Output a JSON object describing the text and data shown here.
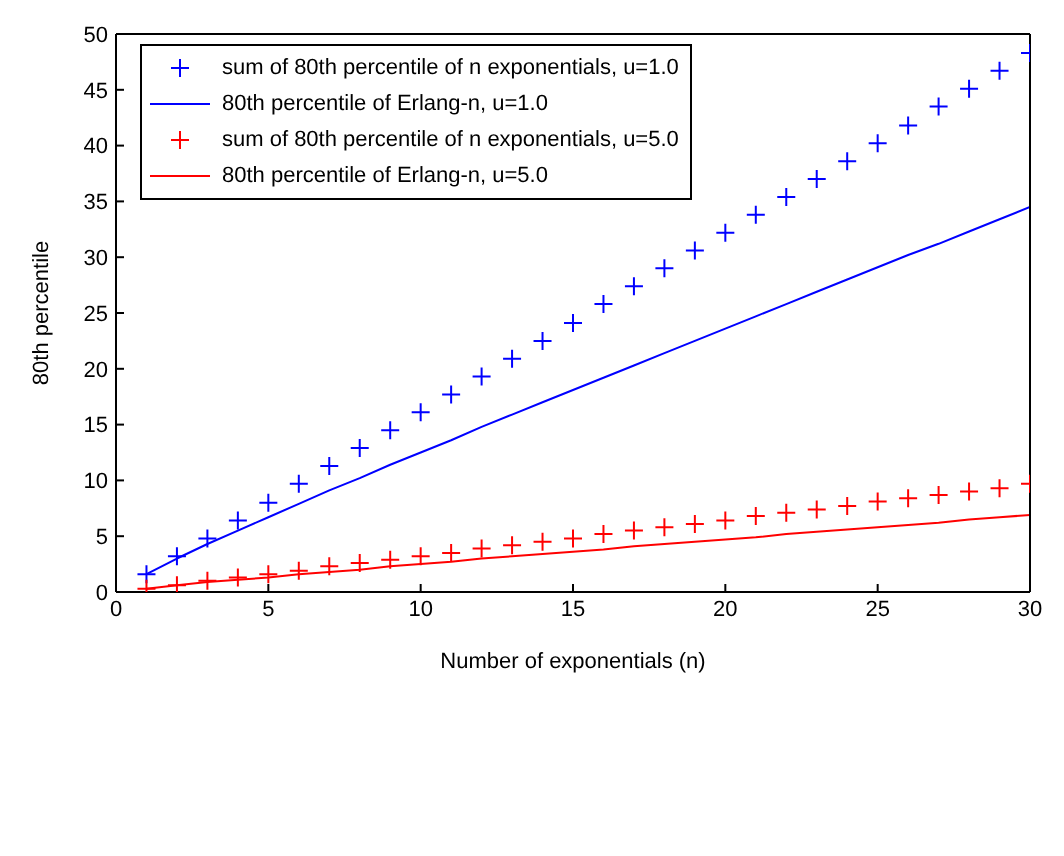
{
  "chart_data": {
    "type": "line",
    "xlabel": "Number of exponentials (n)",
    "ylabel": "80th percentile",
    "x": [
      1,
      2,
      3,
      4,
      5,
      6,
      7,
      8,
      9,
      10,
      11,
      12,
      13,
      14,
      15,
      16,
      17,
      18,
      19,
      20,
      21,
      22,
      23,
      24,
      25,
      26,
      27,
      28,
      29,
      30
    ],
    "xlim": [
      0,
      30
    ],
    "xticks": [
      0,
      5,
      10,
      15,
      20,
      25,
      30
    ],
    "ylim": [
      0,
      50
    ],
    "yticks": [
      0,
      5,
      10,
      15,
      20,
      25,
      30,
      35,
      40,
      45,
      50
    ],
    "legend": "top left",
    "series": [
      {
        "name": "sum of 80th percentile of n exponentials, u=1.0",
        "type": "scatter",
        "marker": "cross",
        "color": "#0000ff",
        "values": [
          1.6,
          3.2,
          4.8,
          6.4,
          8.0,
          9.7,
          11.3,
          12.9,
          14.5,
          16.1,
          17.7,
          19.3,
          20.9,
          22.5,
          24.1,
          25.8,
          27.4,
          29.0,
          30.6,
          32.2,
          33.8,
          35.4,
          37.0,
          38.6,
          40.2,
          41.8,
          43.5,
          45.1,
          46.7,
          48.3
        ]
      },
      {
        "name": "80th percentile of Erlang-n, u=1.0",
        "color": "#0000ff",
        "values": [
          1.6,
          3.0,
          4.3,
          5.5,
          6.7,
          7.9,
          9.1,
          10.2,
          11.4,
          12.5,
          13.6,
          14.8,
          15.9,
          17.0,
          18.1,
          19.2,
          20.3,
          21.4,
          22.5,
          23.6,
          24.7,
          25.8,
          26.9,
          28.0,
          29.1,
          30.2,
          31.2,
          32.3,
          33.4,
          34.5
        ]
      },
      {
        "name": "sum of 80th percentile of n exponentials, u=5.0",
        "type": "scatter",
        "marker": "cross",
        "color": "#ff0000",
        "values": [
          0.3,
          0.6,
          1.0,
          1.3,
          1.6,
          1.9,
          2.3,
          2.6,
          2.9,
          3.2,
          3.5,
          3.9,
          4.2,
          4.5,
          4.8,
          5.2,
          5.5,
          5.8,
          6.1,
          6.4,
          6.8,
          7.1,
          7.4,
          7.7,
          8.1,
          8.4,
          8.7,
          9.0,
          9.3,
          9.7
        ]
      },
      {
        "name": "80th percentile of Erlang-n, u=5.0",
        "color": "#ff0000",
        "values": [
          0.3,
          0.6,
          0.9,
          1.1,
          1.3,
          1.6,
          1.8,
          2.0,
          2.3,
          2.5,
          2.7,
          3.0,
          3.2,
          3.4,
          3.6,
          3.8,
          4.1,
          4.3,
          4.5,
          4.7,
          4.9,
          5.2,
          5.4,
          5.6,
          5.8,
          6.0,
          6.2,
          6.5,
          6.7,
          6.9
        ]
      }
    ]
  }
}
